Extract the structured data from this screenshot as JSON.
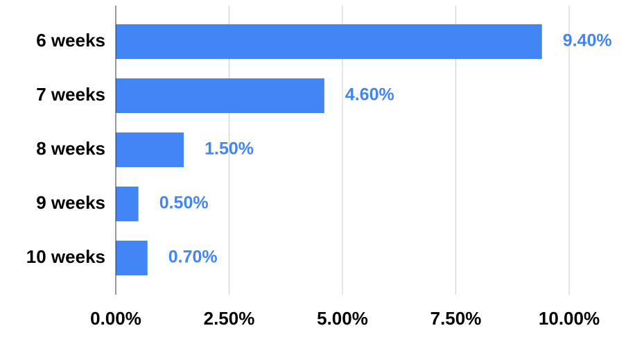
{
  "chart_data": {
    "type": "bar",
    "orientation": "horizontal",
    "categories": [
      "6 weeks",
      "7 weeks",
      "8 weeks",
      "9 weeks",
      "10 weeks"
    ],
    "values": [
      9.4,
      4.6,
      1.5,
      0.5,
      0.7
    ],
    "value_labels": [
      "9.40%",
      "4.60%",
      "1.50%",
      "0.50%",
      "0.70%"
    ],
    "color": "#4285f4",
    "xlim": [
      0,
      10
    ],
    "xticks": [
      {
        "value": 0,
        "label": "0.00%"
      },
      {
        "value": 2.5,
        "label": "2.50%"
      },
      {
        "value": 5,
        "label": "5.00%"
      },
      {
        "value": 7.5,
        "label": "7.50%"
      },
      {
        "value": 10,
        "label": "10.00%"
      }
    ],
    "grid": true
  }
}
